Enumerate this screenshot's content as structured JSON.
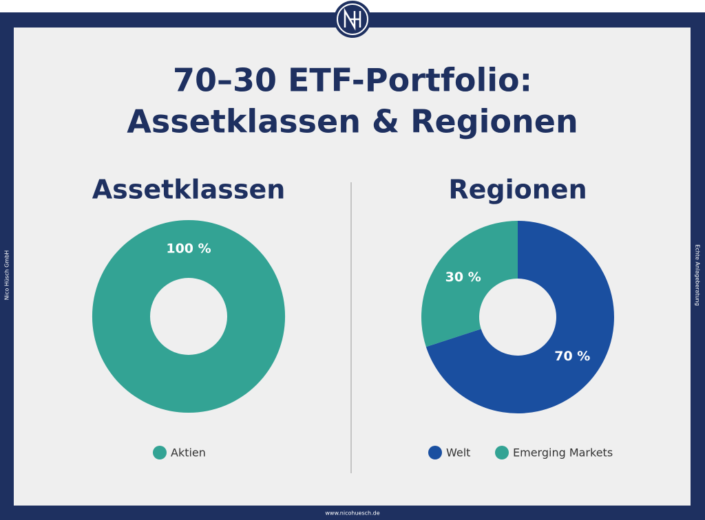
{
  "page": {
    "title_lines": [
      "70–30 ETF-Portfolio:",
      "Assetklassen & Regionen"
    ],
    "side_left": "Nico Hüsch GmbH",
    "side_right": "Echte Anlageberatung",
    "footer": "www.nicohuesch.de"
  },
  "chart_data": [
    {
      "type": "pie",
      "donut": true,
      "title": "Assetklassen",
      "categories": [
        "Aktien"
      ],
      "values": [
        100
      ],
      "value_labels": [
        "100 %"
      ],
      "colors": [
        "#33a394"
      ]
    },
    {
      "type": "pie",
      "donut": true,
      "title": "Regionen",
      "categories": [
        "Welt",
        "Emerging Markets"
      ],
      "values": [
        70,
        30
      ],
      "value_labels": [
        "70 %",
        "30 %"
      ],
      "colors": [
        "#1a4fa0",
        "#33a394"
      ]
    }
  ]
}
